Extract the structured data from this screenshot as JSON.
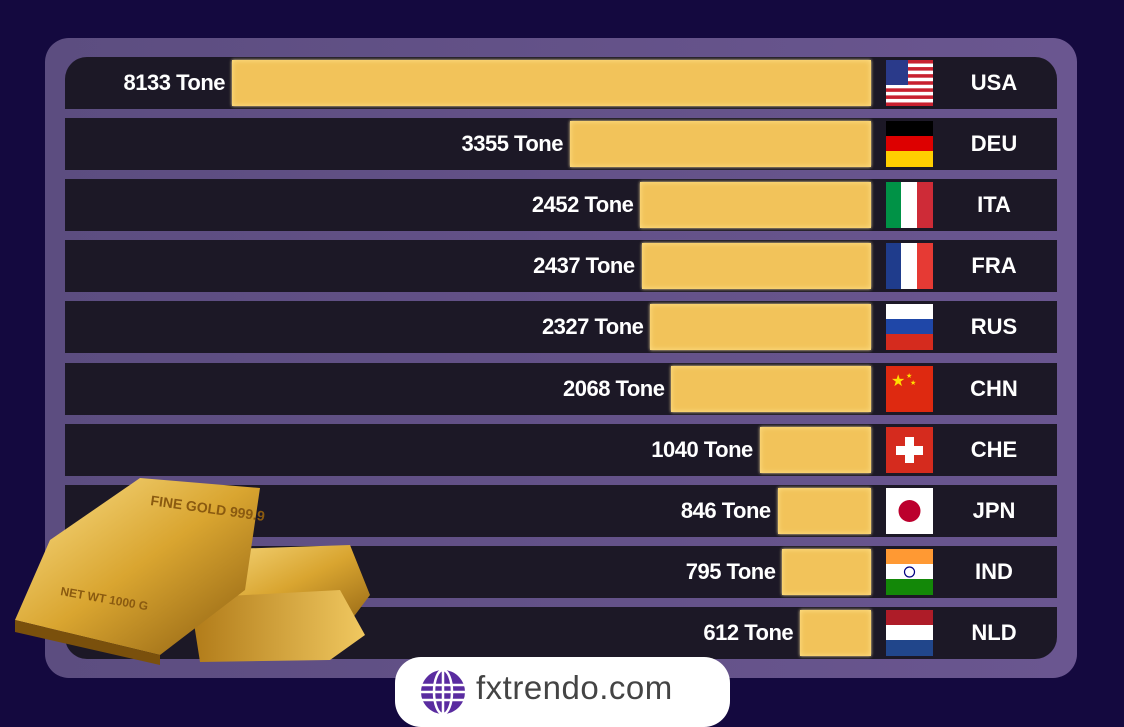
{
  "chart_data": {
    "type": "bar",
    "orientation": "horizontal",
    "unit": "Tone",
    "categories": [
      "USA",
      "DEU",
      "ITA",
      "FRA",
      "RUS",
      "CHN",
      "CHE",
      "JPN",
      "IND",
      "NLD"
    ],
    "values": [
      8133,
      3355,
      2452,
      2437,
      2327,
      2068,
      1040,
      846,
      795,
      612
    ],
    "labels": [
      "8133 Tone",
      "3355 Tone",
      "2452 Tone",
      "2437 Tone",
      "2327 Tone",
      "2068 Tone",
      "1040 Tone",
      "846 Tone",
      "795 Tone",
      "612 Tone"
    ],
    "bar_color": "#f2c35a",
    "flags": [
      "usa-flag",
      "germany-flag",
      "italy-flag",
      "france-flag",
      "russia-flag",
      "china-flag",
      "switzerland-flag",
      "japan-flag",
      "india-flag",
      "netherlands-flag"
    ]
  },
  "gold_bar_text": [
    "FINE GOLD 999.9",
    "NET WT 1000 G"
  ],
  "footer": {
    "site": "fxtrendo.com",
    "icon": "globe-icon"
  }
}
